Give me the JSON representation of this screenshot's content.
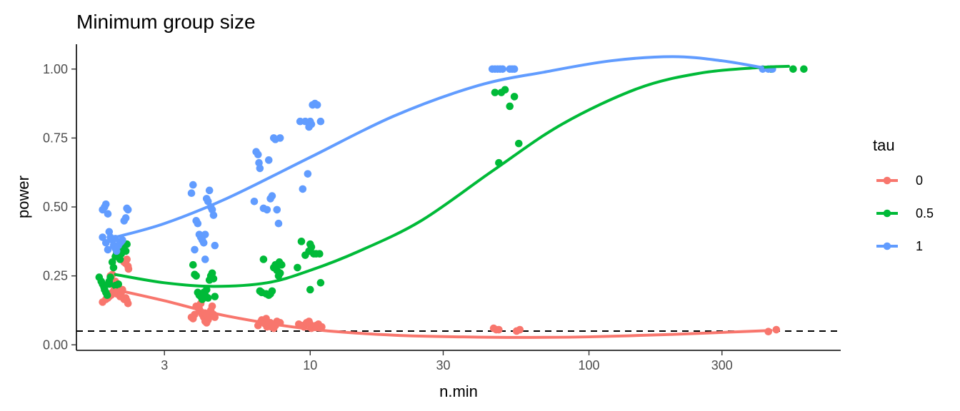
{
  "chart_data": {
    "type": "scatter",
    "title": "Minimum group size",
    "xlabel": "n.min",
    "ylabel": "power",
    "x_scale": "log10",
    "xlim": [
      1.45,
      800
    ],
    "ylim": [
      -0.02,
      1.09
    ],
    "x_ticks": [
      {
        "value": 3,
        "label": "3"
      },
      {
        "value": 10,
        "label": "10"
      },
      {
        "value": 30,
        "label": "30"
      },
      {
        "value": 100,
        "label": "100"
      },
      {
        "value": 300,
        "label": "300"
      }
    ],
    "y_ticks": [
      {
        "value": 0,
        "label": "0.00"
      },
      {
        "value": 0.25,
        "label": "0.25"
      },
      {
        "value": 0.5,
        "label": "0.50"
      },
      {
        "value": 0.75,
        "label": "0.75"
      },
      {
        "value": 1,
        "label": "1.00"
      }
    ],
    "grid": false,
    "reference_line": {
      "y": 0.05,
      "style": "dashed",
      "color": "#000000"
    },
    "legend": {
      "title": "tau",
      "position": "right"
    },
    "series": [
      {
        "name": "0",
        "color": "#F8766D",
        "points": [
          [
            1.8,
            0.155
          ],
          [
            1.85,
            0.165
          ],
          [
            1.88,
            0.17
          ],
          [
            1.9,
            0.175
          ],
          [
            1.93,
            0.18
          ],
          [
            1.95,
            0.19
          ],
          [
            1.98,
            0.2
          ],
          [
            2.0,
            0.21
          ],
          [
            2.02,
            0.185
          ],
          [
            2.05,
            0.195
          ],
          [
            2.08,
            0.175
          ],
          [
            2.1,
            0.19
          ],
          [
            2.12,
            0.2
          ],
          [
            2.15,
            0.165
          ],
          [
            2.18,
            0.17
          ],
          [
            2.2,
            0.16
          ],
          [
            2.22,
            0.15
          ],
          [
            1.92,
            0.25
          ],
          [
            1.95,
            0.255
          ],
          [
            2.15,
            0.3
          ],
          [
            2.18,
            0.295
          ],
          [
            2.2,
            0.31
          ],
          [
            2.22,
            0.285
          ],
          [
            2.23,
            0.275
          ],
          [
            2.0,
            0.23
          ],
          [
            2.05,
            0.22
          ],
          [
            3.75,
            0.1
          ],
          [
            3.8,
            0.095
          ],
          [
            3.85,
            0.11
          ],
          [
            3.9,
            0.14
          ],
          [
            3.95,
            0.135
          ],
          [
            4.0,
            0.13
          ],
          [
            4.05,
            0.12
          ],
          [
            4.1,
            0.11
          ],
          [
            4.15,
            0.1
          ],
          [
            4.2,
            0.085
          ],
          [
            4.25,
            0.08
          ],
          [
            4.3,
            0.09
          ],
          [
            4.35,
            0.1
          ],
          [
            4.4,
            0.125
          ],
          [
            4.45,
            0.14
          ],
          [
            4.5,
            0.11
          ],
          [
            4.55,
            0.1
          ],
          [
            4.05,
            0.15
          ],
          [
            4.2,
            0.115
          ],
          [
            6.5,
            0.07
          ],
          [
            6.6,
            0.08
          ],
          [
            6.7,
            0.09
          ],
          [
            6.8,
            0.085
          ],
          [
            6.9,
            0.075
          ],
          [
            7.0,
            0.065
          ],
          [
            7.1,
            0.07
          ],
          [
            7.2,
            0.08
          ],
          [
            7.3,
            0.075
          ],
          [
            7.4,
            0.06
          ],
          [
            7.5,
            0.07
          ],
          [
            7.6,
            0.085
          ],
          [
            7.7,
            0.08
          ],
          [
            7.8,
            0.08
          ],
          [
            6.95,
            0.095
          ],
          [
            7.25,
            0.065
          ],
          [
            9.1,
            0.075
          ],
          [
            9.3,
            0.07
          ],
          [
            9.5,
            0.065
          ],
          [
            9.7,
            0.08
          ],
          [
            9.9,
            0.085
          ],
          [
            10.1,
            0.06
          ],
          [
            10.3,
            0.065
          ],
          [
            10.5,
            0.07
          ],
          [
            10.7,
            0.075
          ],
          [
            11.0,
            0.065
          ],
          [
            10.0,
            0.075
          ],
          [
            45.5,
            0.06
          ],
          [
            46.5,
            0.055
          ],
          [
            47.5,
            0.055
          ],
          [
            55.0,
            0.05
          ],
          [
            56.5,
            0.055
          ],
          [
            440,
            0.048
          ],
          [
            470,
            0.055
          ]
        ],
        "fit": [
          [
            2.0,
            0.2
          ],
          [
            3,
            0.16
          ],
          [
            5,
            0.105
          ],
          [
            10,
            0.057
          ],
          [
            20,
            0.035
          ],
          [
            40,
            0.028
          ],
          [
            60,
            0.027
          ],
          [
            100,
            0.029
          ],
          [
            200,
            0.038
          ],
          [
            300,
            0.045
          ],
          [
            450,
            0.052
          ]
        ]
      },
      {
        "name": "0.5",
        "color": "#00BA38",
        "points": [
          [
            1.75,
            0.245
          ],
          [
            1.78,
            0.23
          ],
          [
            1.8,
            0.22
          ],
          [
            1.82,
            0.21
          ],
          [
            1.83,
            0.2
          ],
          [
            1.85,
            0.19
          ],
          [
            1.87,
            0.18
          ],
          [
            1.9,
            0.23
          ],
          [
            1.92,
            0.245
          ],
          [
            1.95,
            0.3
          ],
          [
            1.97,
            0.28
          ],
          [
            2.0,
            0.32
          ],
          [
            2.02,
            0.33
          ],
          [
            2.05,
            0.34
          ],
          [
            2.08,
            0.31
          ],
          [
            2.1,
            0.33
          ],
          [
            2.12,
            0.35
          ],
          [
            2.15,
            0.36
          ],
          [
            2.18,
            0.34
          ],
          [
            2.2,
            0.365
          ],
          [
            1.9,
            0.22
          ],
          [
            2.0,
            0.215
          ],
          [
            2.05,
            0.22
          ],
          [
            3.8,
            0.29
          ],
          [
            3.85,
            0.255
          ],
          [
            3.9,
            0.25
          ],
          [
            3.95,
            0.19
          ],
          [
            4.0,
            0.18
          ],
          [
            4.05,
            0.175
          ],
          [
            4.1,
            0.165
          ],
          [
            4.15,
            0.19
          ],
          [
            4.2,
            0.18
          ],
          [
            4.3,
            0.17
          ],
          [
            4.35,
            0.235
          ],
          [
            4.4,
            0.25
          ],
          [
            4.45,
            0.26
          ],
          [
            4.5,
            0.24
          ],
          [
            4.55,
            0.175
          ],
          [
            4.25,
            0.2
          ],
          [
            6.6,
            0.195
          ],
          [
            6.7,
            0.19
          ],
          [
            6.8,
            0.31
          ],
          [
            6.95,
            0.185
          ],
          [
            7.1,
            0.18
          ],
          [
            7.2,
            0.185
          ],
          [
            7.3,
            0.195
          ],
          [
            7.4,
            0.28
          ],
          [
            7.5,
            0.29
          ],
          [
            7.6,
            0.27
          ],
          [
            7.7,
            0.25
          ],
          [
            7.8,
            0.26
          ],
          [
            7.9,
            0.29
          ],
          [
            7.75,
            0.3
          ],
          [
            9.0,
            0.28
          ],
          [
            9.3,
            0.375
          ],
          [
            9.6,
            0.325
          ],
          [
            9.9,
            0.34
          ],
          [
            10.0,
            0.365
          ],
          [
            10.1,
            0.355
          ],
          [
            10.3,
            0.33
          ],
          [
            10.5,
            0.33
          ],
          [
            10.0,
            0.2
          ],
          [
            10.9,
            0.225
          ],
          [
            10.8,
            0.33
          ],
          [
            46.0,
            0.915
          ],
          [
            47.5,
            0.66
          ],
          [
            48.5,
            0.915
          ],
          [
            50.0,
            0.925
          ],
          [
            52.0,
            0.865
          ],
          [
            54.0,
            0.9
          ],
          [
            56.0,
            0.73
          ],
          [
            450,
            1.0
          ],
          [
            540,
            1.0
          ],
          [
            590,
            1.0
          ]
        ],
        "fit": [
          [
            2.0,
            0.255
          ],
          [
            3,
            0.225
          ],
          [
            4.5,
            0.212
          ],
          [
            7,
            0.225
          ],
          [
            10,
            0.27
          ],
          [
            15,
            0.34
          ],
          [
            25,
            0.45
          ],
          [
            45,
            0.63
          ],
          [
            80,
            0.8
          ],
          [
            150,
            0.93
          ],
          [
            250,
            0.985
          ],
          [
            400,
            1.005
          ],
          [
            520,
            1.01
          ]
        ]
      },
      {
        "name": "1",
        "color": "#619CFF",
        "points": [
          [
            1.8,
            0.49
          ],
          [
            1.83,
            0.5
          ],
          [
            1.85,
            0.51
          ],
          [
            1.88,
            0.475
          ],
          [
            1.9,
            0.41
          ],
          [
            1.92,
            0.39
          ],
          [
            1.95,
            0.38
          ],
          [
            1.97,
            0.36
          ],
          [
            2.0,
            0.35
          ],
          [
            2.02,
            0.34
          ],
          [
            2.05,
            0.36
          ],
          [
            2.08,
            0.37
          ],
          [
            2.1,
            0.375
          ],
          [
            2.12,
            0.38
          ],
          [
            2.15,
            0.45
          ],
          [
            2.18,
            0.46
          ],
          [
            2.2,
            0.495
          ],
          [
            2.22,
            0.49
          ],
          [
            1.8,
            0.39
          ],
          [
            1.85,
            0.37
          ],
          [
            1.88,
            0.345
          ],
          [
            2.0,
            0.385
          ],
          [
            3.75,
            0.55
          ],
          [
            3.8,
            0.58
          ],
          [
            3.85,
            0.345
          ],
          [
            3.9,
            0.45
          ],
          [
            3.95,
            0.44
          ],
          [
            4.0,
            0.4
          ],
          [
            4.05,
            0.39
          ],
          [
            4.1,
            0.38
          ],
          [
            4.15,
            0.37
          ],
          [
            4.2,
            0.4
          ],
          [
            4.25,
            0.53
          ],
          [
            4.3,
            0.52
          ],
          [
            4.35,
            0.56
          ],
          [
            4.4,
            0.5
          ],
          [
            4.45,
            0.49
          ],
          [
            4.5,
            0.47
          ],
          [
            4.55,
            0.36
          ],
          [
            4.2,
            0.31
          ],
          [
            6.3,
            0.52
          ],
          [
            6.4,
            0.7
          ],
          [
            6.5,
            0.69
          ],
          [
            6.55,
            0.66
          ],
          [
            6.6,
            0.64
          ],
          [
            6.8,
            0.495
          ],
          [
            7.0,
            0.49
          ],
          [
            7.1,
            0.67
          ],
          [
            7.2,
            0.53
          ],
          [
            7.3,
            0.54
          ],
          [
            7.4,
            0.75
          ],
          [
            7.5,
            0.745
          ],
          [
            7.6,
            0.49
          ],
          [
            7.7,
            0.44
          ],
          [
            7.8,
            0.75
          ],
          [
            9.2,
            0.81
          ],
          [
            9.4,
            0.565
          ],
          [
            9.6,
            0.81
          ],
          [
            9.8,
            0.62
          ],
          [
            10.0,
            0.81
          ],
          [
            10.2,
            0.87
          ],
          [
            10.4,
            0.875
          ],
          [
            10.6,
            0.87
          ],
          [
            10.9,
            0.81
          ],
          [
            9.9,
            0.79
          ],
          [
            10.1,
            0.8
          ],
          [
            45.0,
            1.0
          ],
          [
            46.0,
            1.0
          ],
          [
            47.0,
            1.0
          ],
          [
            48.0,
            1.0
          ],
          [
            49.0,
            1.0
          ],
          [
            52.0,
            1.0
          ],
          [
            53.0,
            1.0
          ],
          [
            54.0,
            1.0
          ],
          [
            420,
            1.0
          ],
          [
            440,
            1.0
          ],
          [
            455,
            1.0
          ]
        ],
        "fit": [
          [
            2.0,
            0.39
          ],
          [
            3,
            0.44
          ],
          [
            5,
            0.53
          ],
          [
            10,
            0.68
          ],
          [
            20,
            0.83
          ],
          [
            40,
            0.94
          ],
          [
            70,
            0.99
          ],
          [
            120,
            1.03
          ],
          [
            200,
            1.045
          ],
          [
            300,
            1.03
          ],
          [
            420,
            1.005
          ]
        ]
      }
    ]
  }
}
